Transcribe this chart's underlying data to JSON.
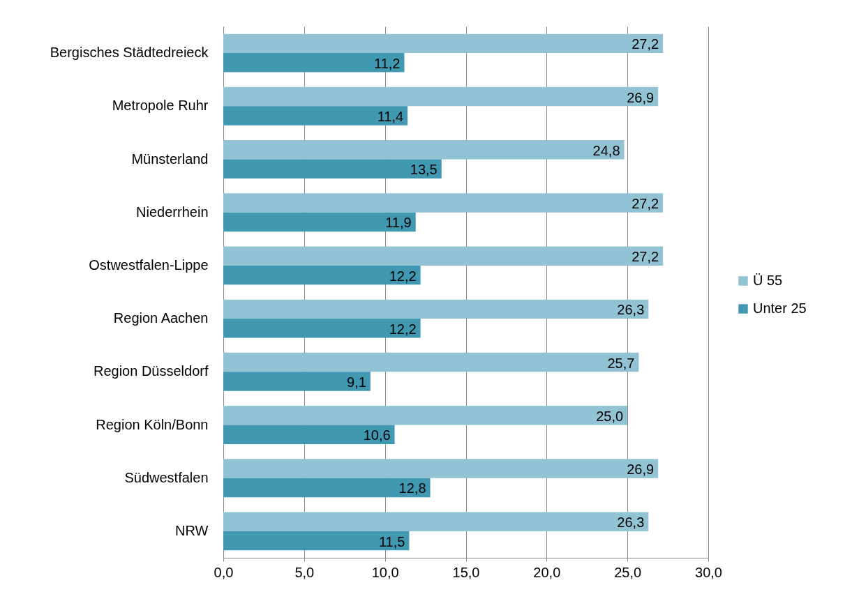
{
  "chart_data": {
    "type": "bar",
    "orientation": "horizontal",
    "categories": [
      "Bergisches Städtedreieck",
      "Metropole Ruhr",
      "Münsterland",
      "Niederrhein",
      "Ostwestfalen-Lippe",
      "Region Aachen",
      "Region Düsseldorf",
      "Region Köln/Bonn",
      "Südwestfalen",
      "NRW"
    ],
    "series": [
      {
        "name": "Ü 55",
        "color": "#92c3d4",
        "values": [
          27.2,
          26.9,
          24.8,
          27.2,
          27.2,
          26.3,
          25.7,
          25.0,
          26.9,
          26.3
        ],
        "value_labels": [
          "27,2",
          "26,9",
          "24,8",
          "27,2",
          "27,2",
          "26,3",
          "25,7",
          "25,0",
          "26,9",
          "26,3"
        ]
      },
      {
        "name": "Unter 25",
        "color": "#4198b1",
        "values": [
          11.2,
          11.4,
          13.5,
          11.9,
          12.2,
          12.2,
          9.1,
          10.6,
          12.8,
          11.5
        ],
        "value_labels": [
          "11,2",
          "11,4",
          "13,5",
          "11,9",
          "12,2",
          "12,2",
          "9,1",
          "10,6",
          "12,8",
          "11,5"
        ]
      }
    ],
    "xlim": [
      0,
      30
    ],
    "xticks": [
      {
        "value": 0,
        "label": "0,0"
      },
      {
        "value": 5,
        "label": "5,0"
      },
      {
        "value": 10,
        "label": "10,0"
      },
      {
        "value": 15,
        "label": "15,0"
      },
      {
        "value": 20,
        "label": "20,0"
      },
      {
        "value": 25,
        "label": "25,0"
      },
      {
        "value": 30,
        "label": "30,0"
      }
    ],
    "grid": "x",
    "legend": "right"
  }
}
